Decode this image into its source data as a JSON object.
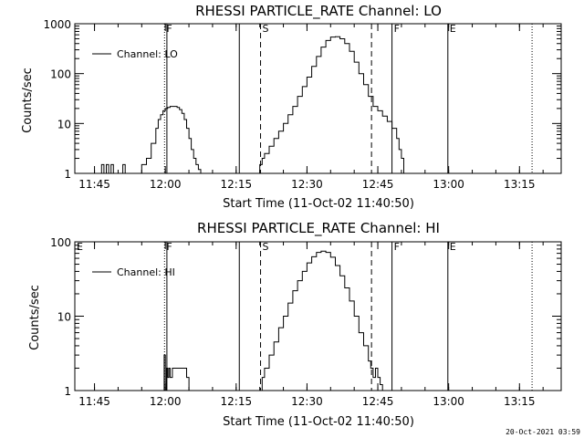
{
  "timestamp": "20-Oct-2021 03:59",
  "colors": {
    "background": "#ffffff",
    "ink": "#000000"
  },
  "chart_data": [
    {
      "type": "line",
      "title": "RHESSI PARTICLE_RATE Channel: LO",
      "xlabel": "Start Time (11-Oct-02 11:40:50)",
      "ylabel": "Counts/sec",
      "y_scale": "log",
      "ylim": [
        1,
        1000
      ],
      "xlim": [
        "11:40:50",
        "13:23:50"
      ],
      "x_ticks": [
        "11:45",
        "12:00",
        "12:15",
        "12:30",
        "12:45",
        "13:00",
        "13:15"
      ],
      "y_ticks": [
        {
          "value": 1,
          "label": "1"
        },
        {
          "value": 10,
          "label": "10"
        },
        {
          "value": 100,
          "label": "100"
        },
        {
          "value": 1000,
          "label": "1000"
        }
      ],
      "grid": false,
      "legend": "top-left",
      "series": [
        {
          "name": "Channel: LO",
          "x": [
            "11:46:00",
            "11:46:30",
            "11:47:00",
            "11:47:30",
            "11:48:00",
            "11:48:30",
            "11:49:00",
            "11:50:30",
            "11:51:00",
            "11:51:30",
            "11:52:00",
            "11:54:00",
            "11:55:00",
            "11:56:00",
            "11:57:00",
            "11:58:00",
            "11:58:30",
            "11:59:00",
            "11:59:30",
            "12:00:00",
            "12:00:30",
            "12:01:00",
            "12:01:30",
            "12:02:00",
            "12:02:30",
            "12:03:00",
            "12:03:30",
            "12:04:00",
            "12:04:30",
            "12:05:00",
            "12:05:30",
            "12:06:00",
            "12:06:30",
            "12:07:00",
            "12:07:30",
            "12:08:00",
            "12:19:30",
            "12:20:00",
            "12:20:30",
            "12:21:00",
            "12:22:00",
            "12:23:00",
            "12:24:00",
            "12:25:00",
            "12:26:00",
            "12:27:00",
            "12:28:00",
            "12:29:00",
            "12:30:00",
            "12:31:00",
            "12:32:00",
            "12:33:00",
            "12:34:00",
            "12:35:00",
            "12:36:00",
            "12:37:00",
            "12:38:00",
            "12:39:00",
            "12:40:00",
            "12:41:00",
            "12:42:00",
            "12:43:00",
            "12:44:00",
            "12:45:00",
            "12:46:00",
            "12:47:00",
            "12:48:00",
            "12:49:00",
            "12:49:30",
            "12:50:00",
            "12:50:30"
          ],
          "values": [
            1,
            1.5,
            1,
            1.5,
            1,
            1.5,
            1,
            1,
            1.5,
            1,
            1,
            1,
            1.5,
            2,
            4,
            8,
            12,
            15,
            18,
            20,
            21,
            22,
            22,
            22,
            21,
            19,
            16,
            12,
            8,
            5,
            3,
            2,
            1.5,
            1.2,
            1,
            1,
            1,
            1.5,
            2,
            2.5,
            3.5,
            5,
            7,
            10,
            15,
            22,
            35,
            55,
            85,
            140,
            220,
            340,
            460,
            540,
            550,
            500,
            400,
            280,
            170,
            100,
            60,
            35,
            22,
            18,
            14,
            11,
            8,
            5,
            3,
            2,
            1
          ]
        }
      ],
      "annotations": [
        {
          "label": "F",
          "x": "11:59:50",
          "line": "dotted"
        },
        {
          "label": "",
          "x": "12:00:20",
          "line": "solid"
        },
        {
          "label": "",
          "x": "12:15:40",
          "line": "solid"
        },
        {
          "label": "S",
          "x": "12:20:10",
          "line": "dashed"
        },
        {
          "label": "",
          "x": "12:43:40",
          "line": "dashed"
        },
        {
          "label": "F",
          "x": "12:48:00",
          "line": "solid"
        },
        {
          "label": "E",
          "x": "12:59:50",
          "line": "solid"
        },
        {
          "label": "",
          "x": "13:17:40",
          "line": "dotted"
        }
      ]
    },
    {
      "type": "line",
      "title": "RHESSI PARTICLE_RATE Channel: HI",
      "xlabel": "Start Time (11-Oct-02 11:40:50)",
      "ylabel": "Counts/sec",
      "y_scale": "log",
      "ylim": [
        1,
        100
      ],
      "xlim": [
        "11:40:50",
        "13:23:50"
      ],
      "x_ticks": [
        "11:45",
        "12:00",
        "12:15",
        "12:30",
        "12:45",
        "13:00",
        "13:15"
      ],
      "y_ticks": [
        {
          "value": 1,
          "label": "1"
        },
        {
          "value": 10,
          "label": "10"
        },
        {
          "value": 100,
          "label": "100"
        }
      ],
      "grid": false,
      "legend": "top-left",
      "series": [
        {
          "name": "Channel: HI",
          "x": [
            "11:59:30",
            "11:59:45",
            "12:00:00",
            "12:00:15",
            "12:00:30",
            "12:00:45",
            "12:01:00",
            "12:01:30",
            "12:02:00",
            "12:02:30",
            "12:03:00",
            "12:03:30",
            "12:04:00",
            "12:04:30",
            "12:05:00",
            "12:20:00",
            "12:20:30",
            "12:21:00",
            "12:22:00",
            "12:23:00",
            "12:24:00",
            "12:25:00",
            "12:26:00",
            "12:27:00",
            "12:28:00",
            "12:29:00",
            "12:30:00",
            "12:31:00",
            "12:32:00",
            "12:33:00",
            "12:34:00",
            "12:35:00",
            "12:36:00",
            "12:37:00",
            "12:38:00",
            "12:39:00",
            "12:40:00",
            "12:41:00",
            "12:42:00",
            "12:43:00",
            "12:43:30",
            "12:44:00",
            "12:44:30",
            "12:45:00",
            "12:45:30",
            "12:46:00"
          ],
          "values": [
            1,
            3,
            1,
            2,
            1.5,
            2,
            1.5,
            2,
            2,
            2,
            2,
            2,
            2,
            1.5,
            1,
            1,
            1.5,
            2,
            3,
            4.5,
            7,
            10,
            15,
            22,
            30,
            40,
            52,
            63,
            72,
            75,
            72,
            62,
            48,
            35,
            24,
            16,
            10,
            6,
            4,
            2.5,
            2,
            1.5,
            2,
            1.5,
            1.2,
            1
          ]
        }
      ],
      "annotations": [
        {
          "label": "E",
          "x": "11:40:50",
          "line": "solid"
        },
        {
          "label": "F",
          "x": "11:59:50",
          "line": "dotted"
        },
        {
          "label": "",
          "x": "12:00:20",
          "line": "solid"
        },
        {
          "label": "",
          "x": "12:15:40",
          "line": "solid"
        },
        {
          "label": "S",
          "x": "12:20:10",
          "line": "dashed"
        },
        {
          "label": "",
          "x": "12:43:40",
          "line": "dashed"
        },
        {
          "label": "F",
          "x": "12:48:00",
          "line": "solid"
        },
        {
          "label": "E",
          "x": "12:59:50",
          "line": "solid"
        },
        {
          "label": "",
          "x": "13:17:40",
          "line": "dotted"
        }
      ]
    }
  ]
}
